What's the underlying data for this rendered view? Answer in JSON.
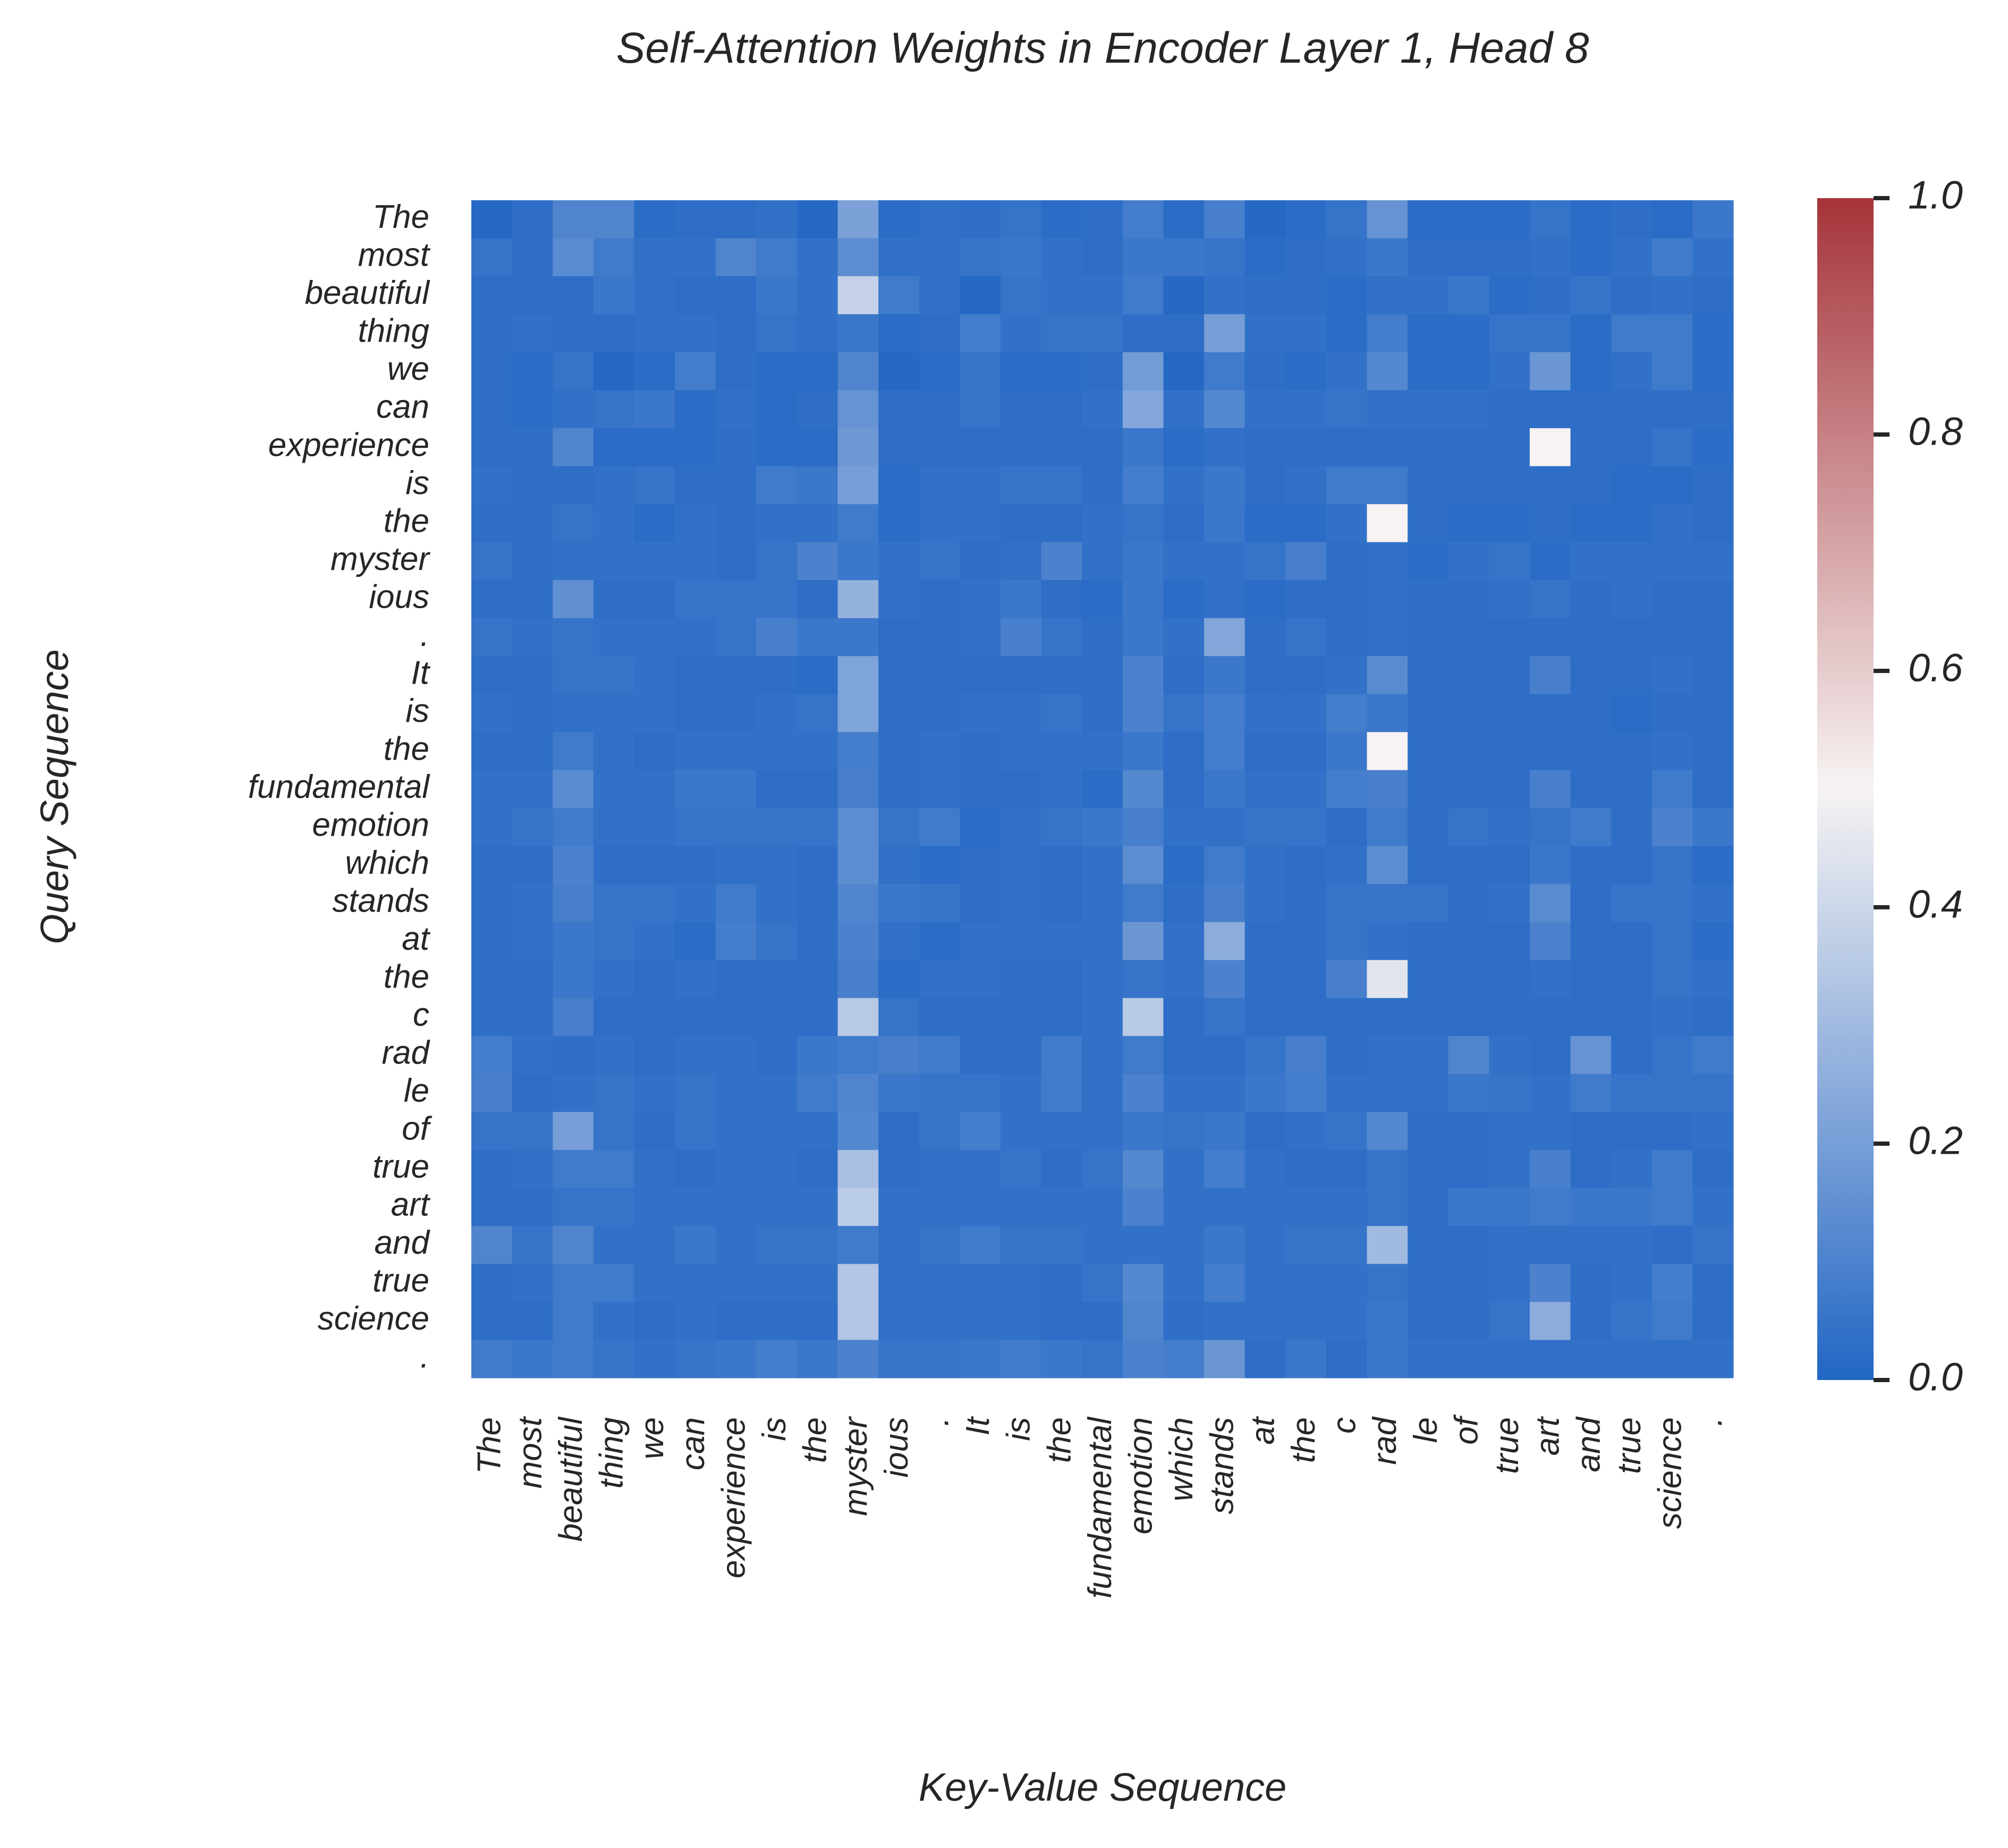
{
  "chart_data": {
    "type": "heatmap",
    "title": "Self-Attention Weights in Encoder Layer 1, Head 8",
    "xlabel": "Key-Value Sequence",
    "ylabel": "Query Sequence",
    "x_tokens": [
      "The",
      "most",
      "beautiful",
      "thing",
      "we",
      "can",
      "experience",
      "is",
      "the",
      "myster",
      "ious",
      ".",
      "It",
      "is",
      "the",
      "fundamental",
      "emotion",
      "which",
      "stands",
      "at",
      "the",
      "c",
      "rad",
      "le",
      "of",
      "true",
      "art",
      "and",
      "true",
      "science",
      "."
    ],
    "y_tokens": [
      "The",
      "most",
      "beautiful",
      "thing",
      "we",
      "can",
      "experience",
      "is",
      "the",
      "myster",
      "ious",
      ".",
      "It",
      "is",
      "the",
      "fundamental",
      "emotion",
      "which",
      "stands",
      "at",
      "the",
      "c",
      "rad",
      "le",
      "of",
      "true",
      "art",
      "and",
      "true",
      "science",
      "."
    ],
    "colorbar": {
      "range": [
        0,
        1
      ],
      "ticks": [
        "0.0",
        "0.2",
        "0.4",
        "0.6",
        "0.8",
        "1.0"
      ],
      "colors": {
        "low": "#2166c4",
        "mid": "#f7f3f3",
        "high": "#a5343a"
      }
    },
    "values": [
      [
        0.01,
        0.03,
        0.11,
        0.11,
        0.02,
        0.03,
        0.03,
        0.04,
        0.01,
        0.21,
        0.02,
        0.04,
        0.03,
        0.05,
        0.02,
        0.03,
        0.08,
        0.02,
        0.09,
        0.01,
        0.02,
        0.05,
        0.16,
        0.02,
        0.02,
        0.02,
        0.05,
        0.02,
        0.03,
        0.02,
        0.06
      ],
      [
        0.05,
        0.03,
        0.13,
        0.07,
        0.04,
        0.04,
        0.11,
        0.07,
        0.04,
        0.14,
        0.04,
        0.04,
        0.05,
        0.06,
        0.04,
        0.03,
        0.06,
        0.06,
        0.05,
        0.02,
        0.03,
        0.04,
        0.06,
        0.03,
        0.03,
        0.03,
        0.04,
        0.02,
        0.04,
        0.07,
        0.04
      ],
      [
        0.03,
        0.03,
        0.03,
        0.06,
        0.04,
        0.03,
        0.03,
        0.06,
        0.04,
        0.38,
        0.07,
        0.04,
        0.01,
        0.05,
        0.04,
        0.04,
        0.07,
        0.01,
        0.04,
        0.03,
        0.03,
        0.02,
        0.04,
        0.04,
        0.06,
        0.02,
        0.03,
        0.05,
        0.03,
        0.04,
        0.03
      ],
      [
        0.03,
        0.04,
        0.03,
        0.03,
        0.04,
        0.04,
        0.03,
        0.05,
        0.04,
        0.06,
        0.02,
        0.03,
        0.08,
        0.04,
        0.05,
        0.05,
        0.03,
        0.03,
        0.2,
        0.04,
        0.04,
        0.02,
        0.08,
        0.02,
        0.02,
        0.05,
        0.05,
        0.02,
        0.07,
        0.07,
        0.02
      ],
      [
        0.03,
        0.02,
        0.05,
        0.01,
        0.02,
        0.08,
        0.03,
        0.02,
        0.02,
        0.11,
        0.01,
        0.02,
        0.05,
        0.02,
        0.02,
        0.03,
        0.19,
        0.01,
        0.07,
        0.03,
        0.02,
        0.04,
        0.12,
        0.02,
        0.02,
        0.04,
        0.17,
        0.02,
        0.04,
        0.07,
        0.02
      ],
      [
        0.03,
        0.02,
        0.04,
        0.05,
        0.06,
        0.02,
        0.04,
        0.02,
        0.03,
        0.16,
        0.03,
        0.03,
        0.05,
        0.03,
        0.03,
        0.04,
        0.23,
        0.04,
        0.12,
        0.04,
        0.04,
        0.05,
        0.04,
        0.04,
        0.04,
        0.03,
        0.03,
        0.03,
        0.03,
        0.03,
        0.03
      ],
      [
        0.03,
        0.03,
        0.11,
        0.02,
        0.02,
        0.02,
        0.03,
        0.02,
        0.02,
        0.18,
        0.03,
        0.03,
        0.03,
        0.03,
        0.03,
        0.03,
        0.06,
        0.02,
        0.04,
        0.03,
        0.03,
        0.03,
        0.03,
        0.03,
        0.03,
        0.03,
        0.5,
        0.03,
        0.03,
        0.05,
        0.02
      ],
      [
        0.04,
        0.03,
        0.03,
        0.04,
        0.05,
        0.03,
        0.03,
        0.07,
        0.06,
        0.2,
        0.02,
        0.04,
        0.04,
        0.05,
        0.05,
        0.03,
        0.08,
        0.04,
        0.06,
        0.03,
        0.04,
        0.07,
        0.07,
        0.03,
        0.03,
        0.03,
        0.03,
        0.03,
        0.02,
        0.02,
        0.03
      ],
      [
        0.03,
        0.03,
        0.05,
        0.04,
        0.02,
        0.04,
        0.03,
        0.04,
        0.04,
        0.07,
        0.02,
        0.04,
        0.04,
        0.03,
        0.03,
        0.04,
        0.05,
        0.03,
        0.06,
        0.02,
        0.02,
        0.04,
        0.5,
        0.03,
        0.02,
        0.02,
        0.03,
        0.02,
        0.02,
        0.04,
        0.03
      ],
      [
        0.05,
        0.03,
        0.04,
        0.04,
        0.04,
        0.04,
        0.03,
        0.05,
        0.1,
        0.06,
        0.04,
        0.05,
        0.03,
        0.04,
        0.1,
        0.04,
        0.06,
        0.04,
        0.04,
        0.05,
        0.09,
        0.03,
        0.04,
        0.02,
        0.04,
        0.05,
        0.02,
        0.04,
        0.04,
        0.04,
        0.04
      ],
      [
        0.03,
        0.03,
        0.15,
        0.03,
        0.03,
        0.05,
        0.05,
        0.05,
        0.03,
        0.27,
        0.04,
        0.03,
        0.04,
        0.06,
        0.03,
        0.02,
        0.06,
        0.02,
        0.04,
        0.02,
        0.03,
        0.03,
        0.04,
        0.03,
        0.03,
        0.04,
        0.05,
        0.03,
        0.04,
        0.03,
        0.03
      ],
      [
        0.05,
        0.04,
        0.05,
        0.04,
        0.04,
        0.04,
        0.05,
        0.09,
        0.06,
        0.06,
        0.03,
        0.03,
        0.04,
        0.09,
        0.05,
        0.03,
        0.06,
        0.04,
        0.23,
        0.03,
        0.05,
        0.03,
        0.04,
        0.03,
        0.03,
        0.03,
        0.03,
        0.03,
        0.03,
        0.03,
        0.03
      ],
      [
        0.03,
        0.03,
        0.05,
        0.05,
        0.04,
        0.03,
        0.03,
        0.03,
        0.02,
        0.22,
        0.03,
        0.03,
        0.03,
        0.03,
        0.03,
        0.03,
        0.1,
        0.03,
        0.06,
        0.03,
        0.03,
        0.04,
        0.13,
        0.03,
        0.03,
        0.03,
        0.09,
        0.03,
        0.03,
        0.04,
        0.03
      ],
      [
        0.04,
        0.03,
        0.04,
        0.04,
        0.04,
        0.03,
        0.03,
        0.04,
        0.05,
        0.22,
        0.03,
        0.03,
        0.04,
        0.04,
        0.05,
        0.03,
        0.1,
        0.05,
        0.08,
        0.04,
        0.04,
        0.08,
        0.06,
        0.03,
        0.03,
        0.03,
        0.03,
        0.03,
        0.02,
        0.03,
        0.03
      ],
      [
        0.03,
        0.03,
        0.07,
        0.04,
        0.03,
        0.04,
        0.04,
        0.04,
        0.04,
        0.08,
        0.03,
        0.04,
        0.03,
        0.04,
        0.04,
        0.04,
        0.06,
        0.03,
        0.08,
        0.03,
        0.03,
        0.06,
        0.5,
        0.03,
        0.03,
        0.03,
        0.03,
        0.03,
        0.03,
        0.04,
        0.03
      ],
      [
        0.04,
        0.04,
        0.13,
        0.04,
        0.04,
        0.06,
        0.06,
        0.03,
        0.03,
        0.09,
        0.03,
        0.04,
        0.03,
        0.03,
        0.04,
        0.02,
        0.12,
        0.03,
        0.06,
        0.04,
        0.04,
        0.08,
        0.09,
        0.03,
        0.03,
        0.03,
        0.09,
        0.03,
        0.03,
        0.07,
        0.03
      ],
      [
        0.04,
        0.05,
        0.07,
        0.04,
        0.04,
        0.05,
        0.05,
        0.05,
        0.05,
        0.14,
        0.05,
        0.07,
        0.02,
        0.04,
        0.05,
        0.06,
        0.09,
        0.04,
        0.04,
        0.05,
        0.05,
        0.03,
        0.07,
        0.03,
        0.05,
        0.04,
        0.05,
        0.07,
        0.03,
        0.1,
        0.06
      ],
      [
        0.03,
        0.03,
        0.1,
        0.03,
        0.03,
        0.03,
        0.04,
        0.04,
        0.03,
        0.14,
        0.04,
        0.02,
        0.03,
        0.04,
        0.03,
        0.04,
        0.14,
        0.02,
        0.07,
        0.04,
        0.03,
        0.04,
        0.14,
        0.03,
        0.03,
        0.03,
        0.06,
        0.03,
        0.03,
        0.05,
        0.02
      ],
      [
        0.03,
        0.04,
        0.09,
        0.05,
        0.05,
        0.04,
        0.07,
        0.04,
        0.03,
        0.11,
        0.06,
        0.05,
        0.03,
        0.04,
        0.03,
        0.04,
        0.07,
        0.03,
        0.09,
        0.04,
        0.03,
        0.05,
        0.05,
        0.05,
        0.03,
        0.04,
        0.13,
        0.03,
        0.05,
        0.05,
        0.04
      ],
      [
        0.03,
        0.04,
        0.06,
        0.05,
        0.04,
        0.02,
        0.08,
        0.05,
        0.03,
        0.1,
        0.04,
        0.02,
        0.04,
        0.04,
        0.04,
        0.04,
        0.17,
        0.04,
        0.25,
        0.03,
        0.03,
        0.05,
        0.04,
        0.03,
        0.03,
        0.03,
        0.1,
        0.03,
        0.03,
        0.05,
        0.02
      ],
      [
        0.03,
        0.03,
        0.06,
        0.04,
        0.03,
        0.04,
        0.03,
        0.03,
        0.03,
        0.09,
        0.02,
        0.04,
        0.04,
        0.03,
        0.03,
        0.04,
        0.05,
        0.04,
        0.1,
        0.03,
        0.03,
        0.09,
        0.45,
        0.03,
        0.03,
        0.03,
        0.04,
        0.03,
        0.03,
        0.05,
        0.04
      ],
      [
        0.03,
        0.03,
        0.09,
        0.03,
        0.03,
        0.03,
        0.03,
        0.03,
        0.03,
        0.35,
        0.05,
        0.03,
        0.03,
        0.03,
        0.03,
        0.04,
        0.35,
        0.03,
        0.05,
        0.03,
        0.03,
        0.03,
        0.03,
        0.03,
        0.03,
        0.03,
        0.03,
        0.03,
        0.03,
        0.04,
        0.03
      ],
      [
        0.08,
        0.04,
        0.03,
        0.04,
        0.03,
        0.04,
        0.04,
        0.03,
        0.06,
        0.07,
        0.09,
        0.07,
        0.03,
        0.03,
        0.07,
        0.04,
        0.07,
        0.03,
        0.03,
        0.05,
        0.09,
        0.03,
        0.04,
        0.04,
        0.11,
        0.04,
        0.03,
        0.16,
        0.03,
        0.05,
        0.07
      ],
      [
        0.09,
        0.03,
        0.04,
        0.05,
        0.04,
        0.05,
        0.04,
        0.04,
        0.07,
        0.11,
        0.06,
        0.05,
        0.05,
        0.04,
        0.07,
        0.04,
        0.1,
        0.04,
        0.04,
        0.06,
        0.08,
        0.04,
        0.04,
        0.04,
        0.06,
        0.05,
        0.04,
        0.07,
        0.05,
        0.05,
        0.05
      ],
      [
        0.05,
        0.05,
        0.2,
        0.05,
        0.03,
        0.05,
        0.04,
        0.04,
        0.04,
        0.12,
        0.03,
        0.05,
        0.08,
        0.04,
        0.04,
        0.04,
        0.06,
        0.05,
        0.06,
        0.03,
        0.04,
        0.05,
        0.12,
        0.03,
        0.03,
        0.04,
        0.04,
        0.03,
        0.03,
        0.03,
        0.04
      ],
      [
        0.03,
        0.04,
        0.07,
        0.07,
        0.04,
        0.03,
        0.04,
        0.04,
        0.03,
        0.32,
        0.03,
        0.04,
        0.04,
        0.05,
        0.03,
        0.05,
        0.12,
        0.04,
        0.08,
        0.04,
        0.03,
        0.03,
        0.05,
        0.03,
        0.03,
        0.04,
        0.09,
        0.03,
        0.04,
        0.07,
        0.03
      ],
      [
        0.03,
        0.03,
        0.05,
        0.05,
        0.04,
        0.04,
        0.04,
        0.04,
        0.04,
        0.36,
        0.04,
        0.04,
        0.04,
        0.04,
        0.04,
        0.04,
        0.1,
        0.04,
        0.04,
        0.04,
        0.04,
        0.04,
        0.05,
        0.03,
        0.06,
        0.06,
        0.07,
        0.06,
        0.06,
        0.07,
        0.04
      ],
      [
        0.11,
        0.05,
        0.11,
        0.04,
        0.04,
        0.06,
        0.04,
        0.05,
        0.05,
        0.07,
        0.04,
        0.05,
        0.07,
        0.05,
        0.05,
        0.04,
        0.04,
        0.04,
        0.06,
        0.04,
        0.05,
        0.05,
        0.3,
        0.03,
        0.03,
        0.04,
        0.04,
        0.04,
        0.04,
        0.03,
        0.05
      ],
      [
        0.03,
        0.04,
        0.07,
        0.07,
        0.04,
        0.04,
        0.04,
        0.04,
        0.04,
        0.34,
        0.04,
        0.04,
        0.04,
        0.04,
        0.03,
        0.05,
        0.12,
        0.04,
        0.08,
        0.04,
        0.04,
        0.04,
        0.05,
        0.03,
        0.03,
        0.04,
        0.1,
        0.03,
        0.04,
        0.08,
        0.03
      ],
      [
        0.03,
        0.03,
        0.07,
        0.04,
        0.03,
        0.04,
        0.03,
        0.03,
        0.03,
        0.34,
        0.04,
        0.04,
        0.04,
        0.04,
        0.03,
        0.03,
        0.11,
        0.03,
        0.04,
        0.04,
        0.04,
        0.04,
        0.06,
        0.03,
        0.03,
        0.05,
        0.25,
        0.03,
        0.05,
        0.07,
        0.03
      ],
      [
        0.07,
        0.06,
        0.07,
        0.05,
        0.04,
        0.05,
        0.06,
        0.08,
        0.06,
        0.1,
        0.05,
        0.05,
        0.06,
        0.07,
        0.06,
        0.05,
        0.1,
        0.08,
        0.17,
        0.03,
        0.06,
        0.03,
        0.06,
        0.04,
        0.04,
        0.04,
        0.04,
        0.04,
        0.04,
        0.04,
        0.04
      ]
    ]
  }
}
